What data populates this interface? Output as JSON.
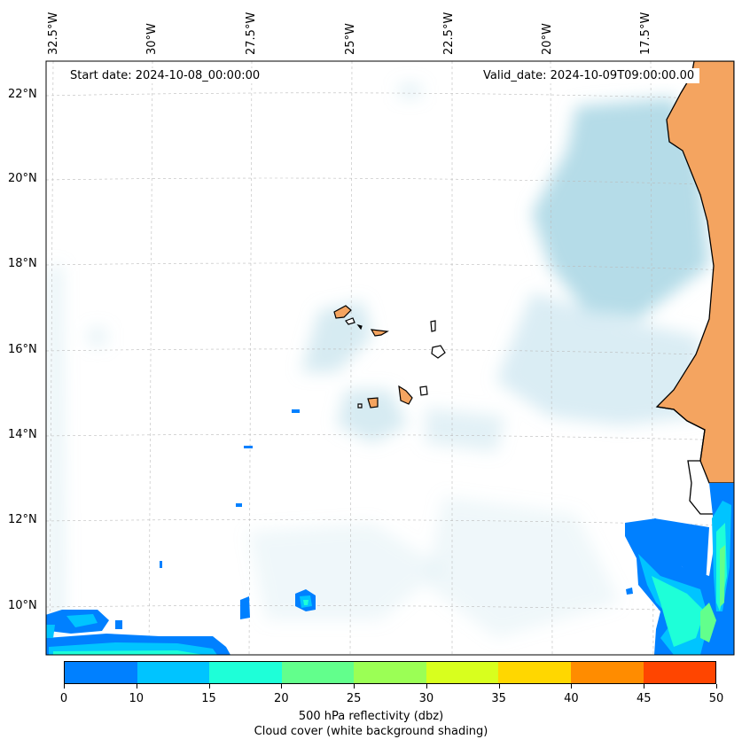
{
  "map": {
    "start_label": "Start date: 2024-10-08_00:00:00",
    "valid_label": "Valid_date: 2024-10-09T09:00:00.00",
    "lon_labels": [
      "32.5°W",
      "30°W",
      "27.5°W",
      "25°W",
      "22.5°W",
      "20°W",
      "17.5°W"
    ],
    "lat_labels": [
      "22°N",
      "20°N",
      "18°N",
      "16°N",
      "14°N",
      "12°N",
      "10°N"
    ],
    "land_color": "#f4a460",
    "cloud_color": "#add8e6"
  },
  "colorbar": {
    "ticks": [
      "0",
      "10",
      "15",
      "20",
      "25",
      "30",
      "35",
      "40",
      "45",
      "50"
    ],
    "colors": [
      "#0080ff",
      "#00c4ff",
      "#1effd8",
      "#62ff8c",
      "#9bff55",
      "#d8ff1e",
      "#ffd700",
      "#ff8c00",
      "#ff4500"
    ],
    "label_line1": "500 hPa reflectivity (dbz)",
    "label_line2": "Cloud cover (white background shading)"
  }
}
